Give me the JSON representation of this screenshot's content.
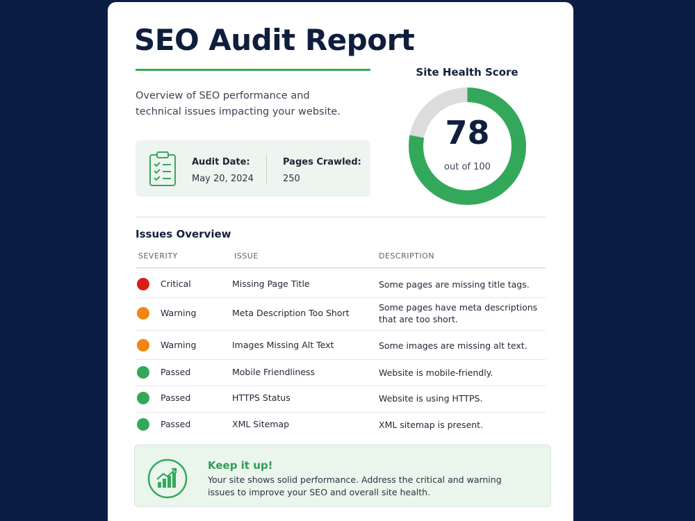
{
  "header": {
    "title": "SEO Audit Report",
    "subtitle": "Overview of SEO performance and technical issues impacting your website."
  },
  "info": {
    "audit_date_label": "Audit Date:",
    "audit_date": "May 20, 2024",
    "pages_label": "Pages Crawled:",
    "pages": 250
  },
  "score": {
    "title": "Site Health Score",
    "value": 78,
    "max": 100,
    "caption": "out of 100",
    "color": "#34a85a",
    "track_color": "#dcdcdc"
  },
  "issues": {
    "title": "Issues Overview",
    "columns": [
      "SEVERITY",
      "ISSUE",
      "DESCRIPTION"
    ],
    "severity_colors": {
      "Critical": "#d91c1c",
      "Warning": "#f2860f",
      "Passed": "#34a85a"
    },
    "rows": [
      [
        "Critical",
        "Missing Page Title",
        "Some pages are missing title tags."
      ],
      [
        "Warning",
        "Meta Description Too Short",
        "Some pages have meta descriptions that are too short."
      ],
      [
        "Warning",
        "Images Missing Alt Text",
        "Some images are missing alt text."
      ],
      [
        "Passed",
        "Mobile Friendliness",
        "Website is mobile-friendly."
      ],
      [
        "Passed",
        "HTTPS Status",
        "Website is using HTTPS."
      ],
      [
        "Passed",
        "XML Sitemap",
        "XML sitemap is present."
      ]
    ]
  },
  "footer": {
    "title": "Keep it up!",
    "text": "Your site shows solid performance. Address the critical and warning issues to improve your SEO and overall site health."
  }
}
